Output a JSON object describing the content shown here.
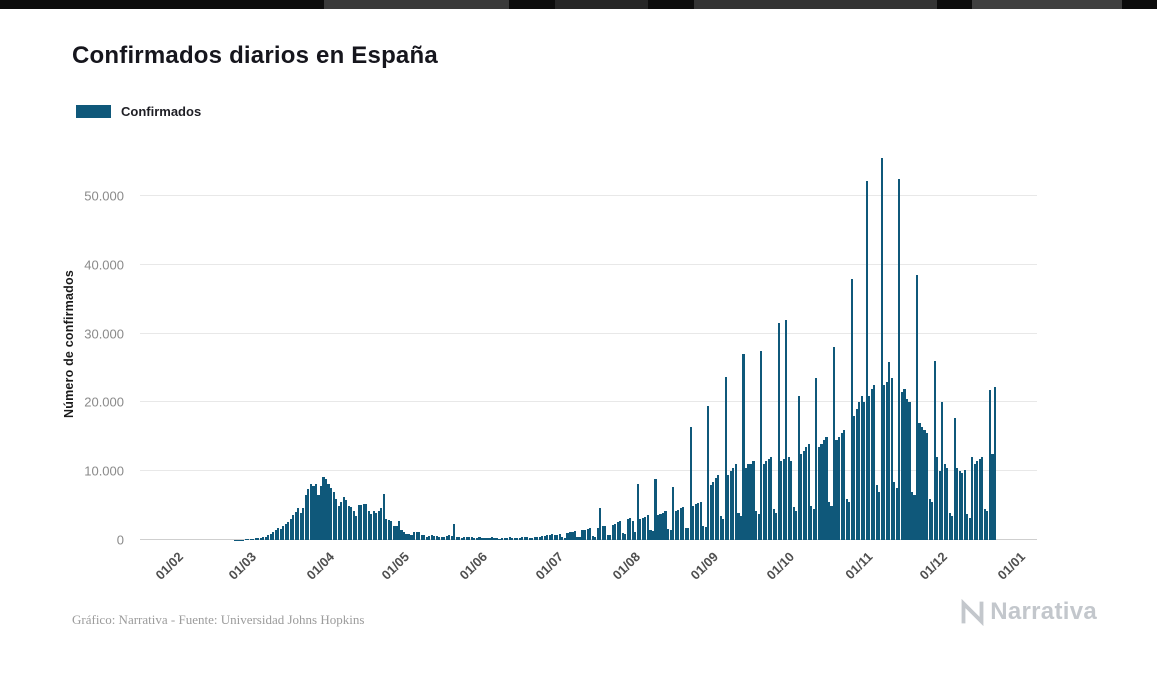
{
  "page": {
    "title": "Confirmados diarios en España",
    "footer_credit": "Gráfico: Narrativa - Fuente: Universidad Johns Hopkins",
    "brand": "Narrativa"
  },
  "legend": {
    "label": "Confirmados",
    "color": "#0f587a"
  },
  "chart_data": {
    "type": "bar",
    "title": "Confirmados diarios en España",
    "xlabel": "",
    "ylabel": "Número de confirmados",
    "ylim": [
      0,
      57000
    ],
    "grid": true,
    "legend_position": "top-left",
    "yticks": [
      0,
      10000,
      20000,
      30000,
      40000,
      50000
    ],
    "ytick_labels": [
      "0",
      "10.000",
      "20.000",
      "30.000",
      "40.000",
      "50.000"
    ],
    "x_start_date": "2020-02-01",
    "x_tick_labels": [
      "01/02",
      "01/03",
      "01/04",
      "01/05",
      "01/06",
      "01/07",
      "01/08",
      "01/09",
      "01/10",
      "01/11",
      "01/12",
      "01/01"
    ],
    "x_tick_indices": [
      0,
      29,
      60,
      90,
      121,
      151,
      182,
      213,
      243,
      274,
      304,
      335
    ],
    "axis_slots": 336,
    "series": [
      {
        "name": "Confirmados",
        "color": "#0f587a",
        "values": [
          0,
          0,
          0,
          0,
          0,
          0,
          0,
          0,
          0,
          0,
          0,
          0,
          0,
          0,
          0,
          0,
          0,
          0,
          0,
          0,
          0,
          0,
          0,
          0,
          30,
          40,
          50,
          60,
          80,
          100,
          150,
          200,
          250,
          300,
          350,
          400,
          500,
          700,
          900,
          1100,
          1400,
          1700,
          1600,
          2100,
          2300,
          2600,
          3100,
          3600,
          4100,
          4600,
          3900,
          4700,
          6600,
          7400,
          8200,
          7900,
          8200,
          6500,
          7800,
          9200,
          8900,
          8100,
          7500,
          7000,
          6000,
          5000,
          5500,
          6200,
          5800,
          5000,
          4800,
          4200,
          3500,
          5100,
          5100,
          5200,
          5300,
          4200,
          3800,
          4200,
          3900,
          4200,
          4600,
          6700,
          3000,
          2900,
          2700,
          2100,
          2100,
          2700,
          1400,
          1200,
          900,
          850,
          800,
          1100,
          1100,
          1200,
          800,
          700,
          500,
          600,
          750,
          650,
          550,
          500,
          450,
          500,
          600,
          700,
          600,
          2400,
          500,
          450,
          350,
          400,
          500,
          450,
          400,
          350,
          300,
          400,
          300,
          250,
          300,
          350,
          400,
          300,
          250,
          200,
          250,
          300,
          350,
          400,
          300,
          250,
          300,
          350,
          400,
          450,
          400,
          350,
          300,
          400,
          450,
          500,
          550,
          600,
          700,
          800,
          850,
          700,
          800,
          900,
          400,
          300,
          1000,
          1100,
          1200,
          1300,
          500,
          400,
          1400,
          1500,
          1600,
          1700,
          600,
          500,
          1800,
          4600,
          2000,
          2100,
          800,
          700,
          2200,
          2400,
          2600,
          2800,
          1000,
          900,
          3000,
          3200,
          2800,
          1200,
          8200,
          3000,
          3200,
          3400,
          3600,
          1400,
          1300,
          8800,
          3600,
          3800,
          4000,
          4200,
          1600,
          1500,
          7700,
          4200,
          4400,
          4600,
          4800,
          1800,
          1700,
          16400,
          5000,
          5200,
          5400,
          5600,
          2000,
          1900,
          19500,
          8000,
          8500,
          9000,
          9500,
          3500,
          3000,
          23700,
          9500,
          10000,
          10500,
          11000,
          4000,
          3500,
          27000,
          10500,
          11000,
          11000,
          11500,
          4200,
          3800,
          27500,
          11000,
          11500,
          11800,
          12000,
          4500,
          4000,
          31500,
          11500,
          11800,
          32000,
          12000,
          11500,
          4800,
          4200,
          21000,
          12500,
          13000,
          13500,
          14000,
          5000,
          4500,
          23500,
          13500,
          14000,
          14500,
          15000,
          5500,
          5000,
          28000,
          14500,
          15000,
          15500,
          16000,
          6000,
          5500,
          38000,
          18000,
          19000,
          20000,
          21000,
          20000,
          52200,
          21000,
          22000,
          22500,
          8000,
          7000,
          55500,
          22500,
          23000,
          25900,
          23500,
          8500,
          7500,
          52500,
          21500,
          22000,
          20500,
          20000,
          7000,
          6500,
          38500,
          17000,
          16500,
          16000,
          15500,
          6000,
          5500,
          26000,
          12000,
          10000,
          20000,
          11000,
          10500,
          4000,
          3500,
          17800,
          10500,
          10000,
          9800,
          10200,
          3800,
          3200,
          12000,
          11000,
          11500,
          11800,
          12000,
          4500,
          4200,
          21800,
          12500,
          22200
        ]
      }
    ]
  }
}
